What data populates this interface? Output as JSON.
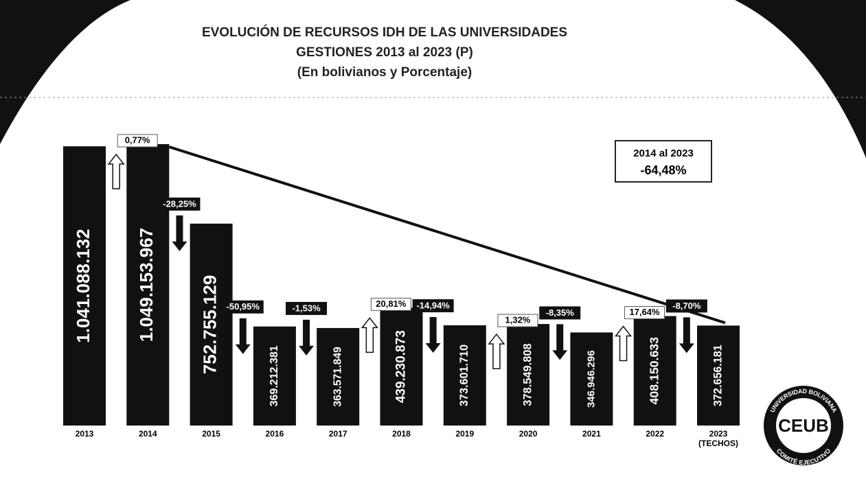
{
  "chart_data": {
    "type": "bar",
    "title_lines": [
      "EVOLUCIÓN DE RECURSOS IDH DE LAS UNIVERSIDADES",
      "GESTIONES  2013 al 2023 (P)",
      "(En bolivianos y Porcentaje)"
    ],
    "categories": [
      "2013",
      "2014",
      "2015",
      "2016",
      "2017",
      "2018",
      "2019",
      "2020",
      "2021",
      "2022",
      "2023"
    ],
    "last_category_note": "(TECHOS)",
    "values": [
      1041088132,
      1049153967,
      752755129,
      369212381,
      363571849,
      439230873,
      373601710,
      378549808,
      346946296,
      408150633,
      372656181
    ],
    "value_labels": [
      "1.041.088.132",
      "1.049.153.967",
      "752.755.129",
      "369.212.381",
      "363.571.849",
      "439.230.873",
      "373.601.710",
      "378.549.808",
      "346.946.296",
      "408.150.633",
      "372.656.181"
    ],
    "color": "#111111",
    "changes": {
      "values": [
        0.77,
        -28.25,
        -50.95,
        -1.53,
        20.81,
        -14.94,
        1.32,
        -8.35,
        17.64,
        -8.7
      ],
      "value_labels": [
        "0,77%",
        "-28,25%",
        "-50,95%",
        "-1,53%",
        "20,81%",
        "-14,94%",
        "1,32%",
        "-8,35%",
        "17,64%",
        "-8,70%"
      ]
    },
    "summary": {
      "period": "2014 al 2023",
      "value": -64.48,
      "value_label": "-64,48%"
    },
    "logo": {
      "name": "CEUB",
      "top_text": "UNIVERSIDAD BOLIVIANA",
      "bottom_text": "COMITÉ EJECUTIVO"
    }
  }
}
